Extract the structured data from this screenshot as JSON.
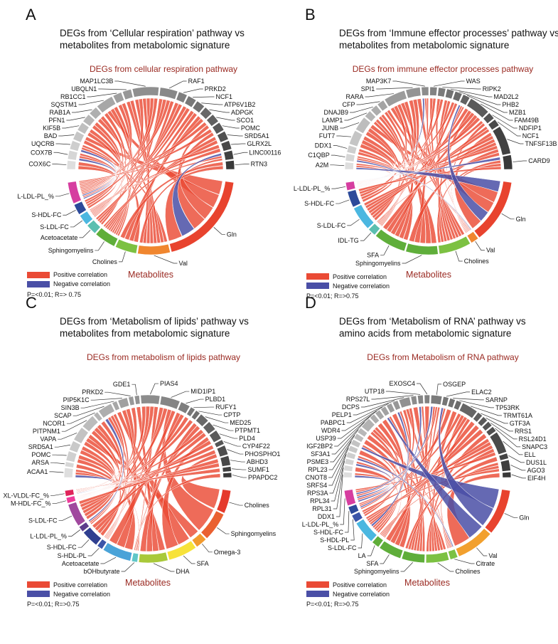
{
  "colors": {
    "positive": "#ea4a35",
    "negative": "#4a4fa6",
    "title_red": "#9a2a22"
  },
  "legend": {
    "positive": "Positive correlation",
    "negative": "Negative correlation"
  },
  "panels": [
    {
      "letter": "A",
      "title_line1": "DEGs from ‘Cellular respiration’ pathway vs",
      "title_line2": "metabolites from metabolomic signature",
      "genes_title": "DEGs from cellular respiration pathway",
      "metabolites_title": "Metabolites",
      "stats": "P=<0.01; R=> 0.75",
      "genes": [
        [
          "COX6C",
          1
        ],
        [
          "COX7B",
          1
        ],
        [
          "UQCRB",
          1
        ],
        [
          "BAD",
          1
        ],
        [
          "KIF5B",
          1
        ],
        [
          "PFN1",
          1
        ],
        [
          "RAB1A",
          1
        ],
        [
          "SQSTM1",
          2
        ],
        [
          "RB1CC1",
          1
        ],
        [
          "UBQLN1",
          1
        ],
        [
          "MAP1LC3B",
          3
        ],
        [
          "RAF1",
          2
        ],
        [
          "PRKD2",
          1
        ],
        [
          "NCF1",
          1
        ],
        [
          "ATP6V1B2",
          1
        ],
        [
          "ADPGK",
          1
        ],
        [
          "SCO1",
          1
        ],
        [
          "POMC",
          1
        ],
        [
          "SRD5A1",
          1
        ],
        [
          "GLRX2L",
          1
        ],
        [
          "LINC00116",
          1
        ],
        [
          "RTN3",
          1
        ]
      ],
      "metabolites": [
        [
          "L-LDL-PL_%",
          2,
          "#d63ea0"
        ],
        [
          "S-HDL-FC",
          1,
          "#2c4a9a"
        ],
        [
          "S-LDL-FC",
          1,
          "#4bb7e0"
        ],
        [
          "Acetoacetate",
          1,
          "#5bbfb0"
        ],
        [
          "Sphingomyelins",
          2,
          "#5fae3a"
        ],
        [
          "Cholines",
          2,
          "#7cc142"
        ],
        [
          "Val",
          3,
          "#f0862f"
        ],
        [
          "Gln",
          9,
          "#e8432e"
        ]
      ],
      "negative_links": [
        [
          "COX7B",
          "L-LDL-PL_%"
        ],
        [
          "UQCRB",
          "L-LDL-PL_%"
        ],
        [
          "LINC00116",
          "Gln"
        ]
      ]
    },
    {
      "letter": "B",
      "title_line1": "DEGs from ‘Immune effector processes’ pathway vs",
      "title_line2": "metabolites from metabolomic signature",
      "genes_title": "DEGs from immune effector processes pathway",
      "metabolites_title": "Metabolites",
      "stats": "P=<0.01; R=>0.75",
      "genes": [
        [
          "A2M",
          1
        ],
        [
          "C1QBP",
          1
        ],
        [
          "DDX1",
          1
        ],
        [
          "FUT7",
          2
        ],
        [
          "JUNB",
          2
        ],
        [
          "LAMP1",
          1
        ],
        [
          "DNAJB9",
          1
        ],
        [
          "CFP",
          1
        ],
        [
          "RARA",
          3
        ],
        [
          "SPI1",
          2
        ],
        [
          "MAP3K7",
          1
        ],
        [
          "WAS",
          1
        ],
        [
          "RIPK2",
          1
        ],
        [
          "MAD2L2",
          1
        ],
        [
          "PHB2",
          1
        ],
        [
          "MZB1",
          1
        ],
        [
          "FAM49B",
          3
        ],
        [
          "NDFIP1",
          1
        ],
        [
          "NCF1",
          1
        ],
        [
          "TNFSF13B",
          4
        ],
        [
          "CARD9",
          2
        ]
      ],
      "metabolites": [
        [
          "L-LDL-PL_%",
          1,
          "#d63ea0"
        ],
        [
          "S-HDL-FC",
          2,
          "#2c4a9a"
        ],
        [
          "S-LDL-FC",
          3,
          "#4bb7e0"
        ],
        [
          "IDL-TG",
          1,
          "#5bbfb0"
        ],
        [
          "SFA",
          4,
          "#5fae3a"
        ],
        [
          "Sphingomyelins",
          4,
          "#5fae3a"
        ],
        [
          "Cholines",
          4,
          "#7cc142"
        ],
        [
          "Val",
          1,
          "#f0862f"
        ],
        [
          "Gln",
          8,
          "#e8432e"
        ]
      ],
      "negative_links": [
        [
          "A2M",
          "Gln"
        ],
        [
          "C1QBP",
          "Val"
        ],
        [
          "CARD9",
          "L-LDL-PL_%"
        ],
        [
          "MAP3K7",
          "L-LDL-PL_%"
        ],
        [
          "MZB1",
          "Gln"
        ]
      ]
    },
    {
      "letter": "C",
      "title_line1": "DEGs from ‘Metabolism of lipids’ pathway vs",
      "title_line2": "metabolites from metabolomic signature",
      "genes_title": "DEGs from metabolism of lipids pathway",
      "metabolites_title": "Metabolites",
      "stats": "P=<0.01; R=>0.75",
      "genes": [
        [
          "ACAA1",
          2
        ],
        [
          "ARSA",
          1
        ],
        [
          "POMC",
          2
        ],
        [
          "SRD5A1",
          2
        ],
        [
          "VAPA",
          3
        ],
        [
          "PITPNM1",
          3
        ],
        [
          "NCOR1",
          1
        ],
        [
          "SCAP",
          3
        ],
        [
          "SIN3B",
          1
        ],
        [
          "PIP5K1C",
          2
        ],
        [
          "PRKD2",
          1
        ],
        [
          "GDE1",
          1
        ],
        [
          "PIAS4",
          4
        ],
        [
          "MID1IP1",
          4
        ],
        [
          "PLBD1",
          2
        ],
        [
          "RUFY1",
          1
        ],
        [
          "CPTP",
          1
        ],
        [
          "MED25",
          2
        ],
        [
          "PTPMT1",
          2
        ],
        [
          "PLD4",
          2
        ],
        [
          "CYP4F22",
          1
        ],
        [
          "PHOSPHO1",
          2
        ],
        [
          "ABHD3",
          2
        ],
        [
          "SUMF1",
          1
        ],
        [
          "PPAPDC2",
          1
        ]
      ],
      "metabolites": [
        [
          "XL-VLDL-FC_%",
          1,
          "#e0245a"
        ],
        [
          "M-HDL-FC_%",
          1,
          "#ee3c9a"
        ],
        [
          "S-LDL-FC",
          4,
          "#a0489e"
        ],
        [
          "L-LDL-PL_%",
          1,
          "#5c3c8c"
        ],
        [
          "S-HDL-FC",
          3,
          "#2f3f90"
        ],
        [
          "S-HDL-PL",
          1,
          "#3b55a8"
        ],
        [
          "Acetoacetate",
          5,
          "#4aa3d8"
        ],
        [
          "bOHbutyrate",
          1,
          "#5fc6c8"
        ],
        [
          "DHA",
          5,
          "#a9c93a"
        ],
        [
          "SFA",
          5,
          "#f7e23a"
        ],
        [
          "Omega-3",
          2,
          "#f29a2e"
        ],
        [
          "Sphingomyelins",
          5,
          "#ea6030"
        ],
        [
          "Cholines",
          4,
          "#e53a2c"
        ]
      ],
      "negative_links": [
        [
          "ACAA1",
          "XL-VLDL-FC_%"
        ],
        [
          "SCAP",
          "L-LDL-PL_%"
        ]
      ]
    },
    {
      "letter": "D",
      "title_line1": "DEGs from ‘Metabolism of RNA’ pathway vs",
      "title_line2": "amino acids from metabolomic signature",
      "genes_title": "DEGs from Metabolism of RNA pathway",
      "metabolites_title": "Metabolites",
      "stats": "P=<0.01; R=>0.75",
      "genes": [
        [
          "DDX1",
          1
        ],
        [
          "RPL31",
          1
        ],
        [
          "RPL34",
          1
        ],
        [
          "RPS3A",
          1
        ],
        [
          "SRFS4",
          1
        ],
        [
          "CNOT8",
          1
        ],
        [
          "RPL23",
          1
        ],
        [
          "PSME3",
          1
        ],
        [
          "SF3A1",
          2
        ],
        [
          "IGF2BP2",
          1
        ],
        [
          "USP39",
          1
        ],
        [
          "WDR4",
          1
        ],
        [
          "PABPC1",
          1
        ],
        [
          "PELP1",
          1
        ],
        [
          "DCPS",
          2
        ],
        [
          "RPS27L",
          1
        ],
        [
          "UTP18",
          1
        ],
        [
          "EXOSC4",
          1
        ],
        [
          "OSGEP",
          2
        ],
        [
          "ELAC2",
          1
        ],
        [
          "SARNP",
          1
        ],
        [
          "TP53RK",
          1
        ],
        [
          "TRMT61A",
          3
        ],
        [
          "GTF3A",
          1
        ],
        [
          "RRS1",
          1
        ],
        [
          "RSL24D1",
          1
        ],
        [
          "SNAPC3",
          1
        ],
        [
          "ELL",
          4
        ],
        [
          "DUS1L",
          1
        ],
        [
          "AGO3",
          2
        ],
        [
          "EIF4H",
          1
        ]
      ],
      "metabolites": [
        [
          "L-LDL-PL_%",
          2,
          "#d63ea0"
        ],
        [
          "S-HDL-FC",
          1,
          "#2c4a9a"
        ],
        [
          "S-HDL-PL",
          1,
          "#3b55a8"
        ],
        [
          "S-LDL-FC",
          3,
          "#4bb7e0"
        ],
        [
          "LA",
          1,
          "#5fae3a"
        ],
        [
          "SFA",
          3,
          "#5fae3a"
        ],
        [
          "Sphingomyelins",
          3,
          "#5fae3a"
        ],
        [
          "Cholines",
          3,
          "#7cc142"
        ],
        [
          "Citrate",
          1,
          "#7cc142"
        ],
        [
          "Val",
          5,
          "#f2a02e"
        ],
        [
          "Gln",
          6,
          "#e8432e"
        ]
      ],
      "negative_links": [
        [
          "DDX1",
          "L-LDL-PL_%"
        ],
        [
          "RPL34",
          "L-LDL-PL_%"
        ],
        [
          "CNOT8",
          "Gln"
        ],
        [
          "WDR4",
          "Val"
        ],
        [
          "PELP1",
          "S-LDL-FC"
        ],
        [
          "OSGEP",
          "L-LDL-PL_%"
        ],
        [
          "ELAC2",
          "Gln"
        ],
        [
          "UTP18",
          "S-HDL-FC"
        ],
        [
          "RPS3A",
          "Citrate"
        ]
      ]
    }
  ]
}
